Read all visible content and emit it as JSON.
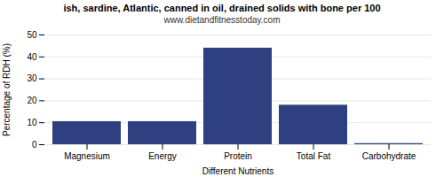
{
  "chart_data": {
    "type": "bar",
    "title": "ish, sardine, Atlantic, canned in oil, drained solids with bone per 100",
    "subtitle": "www.dietandfitnesstoday.com",
    "categories": [
      "Magnesium",
      "Energy",
      "Protein",
      "Total Fat",
      "Carbohydrate"
    ],
    "values": [
      10.5,
      10.5,
      44.0,
      18.0,
      0.5
    ],
    "color": "#2e4080",
    "xlabel": "Different Nutrients",
    "ylabel": "Percentage of RDH (%)",
    "ylim": [
      0,
      50
    ],
    "yticks": [
      0,
      10,
      20,
      30,
      40,
      50
    ],
    "grid": true
  }
}
